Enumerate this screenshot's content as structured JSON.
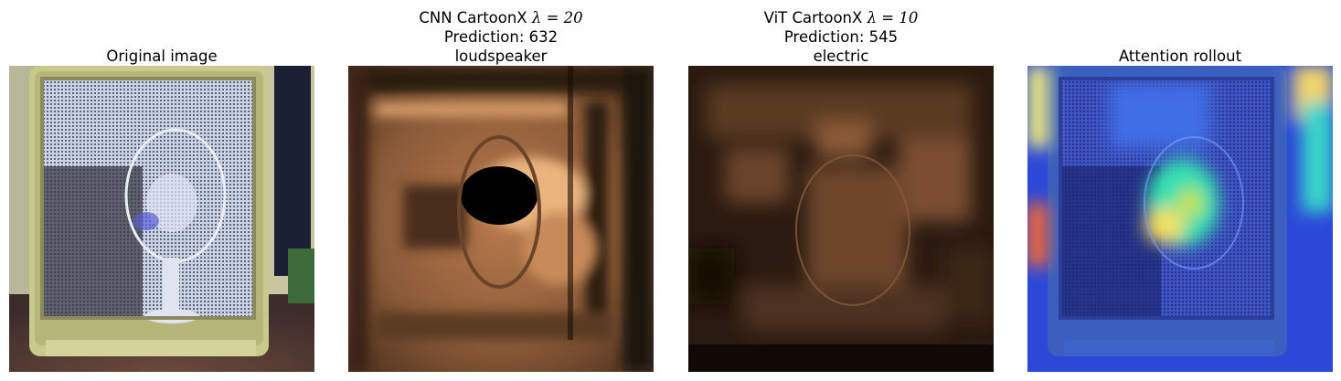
{
  "panels": [
    {
      "title_lines": [
        "Original image"
      ],
      "image": "photo of a white portable heater/cabinet with a mesh front and a table fan inside"
    },
    {
      "title_lines": [
        "CNN CartoonX λ = 20",
        "Prediction: 632",
        "loudspeaker"
      ],
      "title_prefix": "CNN CartoonX ",
      "title_lambda": "λ = 20",
      "prediction": "Prediction: 632",
      "label": "loudspeaker",
      "image": "copper-colormap CartoonX explanation mask with dark ellipse at centre"
    },
    {
      "title_lines": [
        "ViT CartoonX λ = 10",
        "Prediction: 545",
        "electric"
      ],
      "title_prefix": "ViT CartoonX ",
      "title_lambda": "λ = 10",
      "prediction": "Prediction: 545",
      "label": "electric",
      "image": "copper-colormap CartoonX explanation mask, mostly dark with faint fan outline"
    },
    {
      "title_lines": [
        "Attention rollout"
      ],
      "image": "jet-colormap attention rollout overlay on the original photo"
    }
  ],
  "colors": {
    "copper_dark": "#000000",
    "copper_light": "#ffc77f",
    "jet_blue": "#1c3cff",
    "jet_red": "#ff2a00"
  }
}
